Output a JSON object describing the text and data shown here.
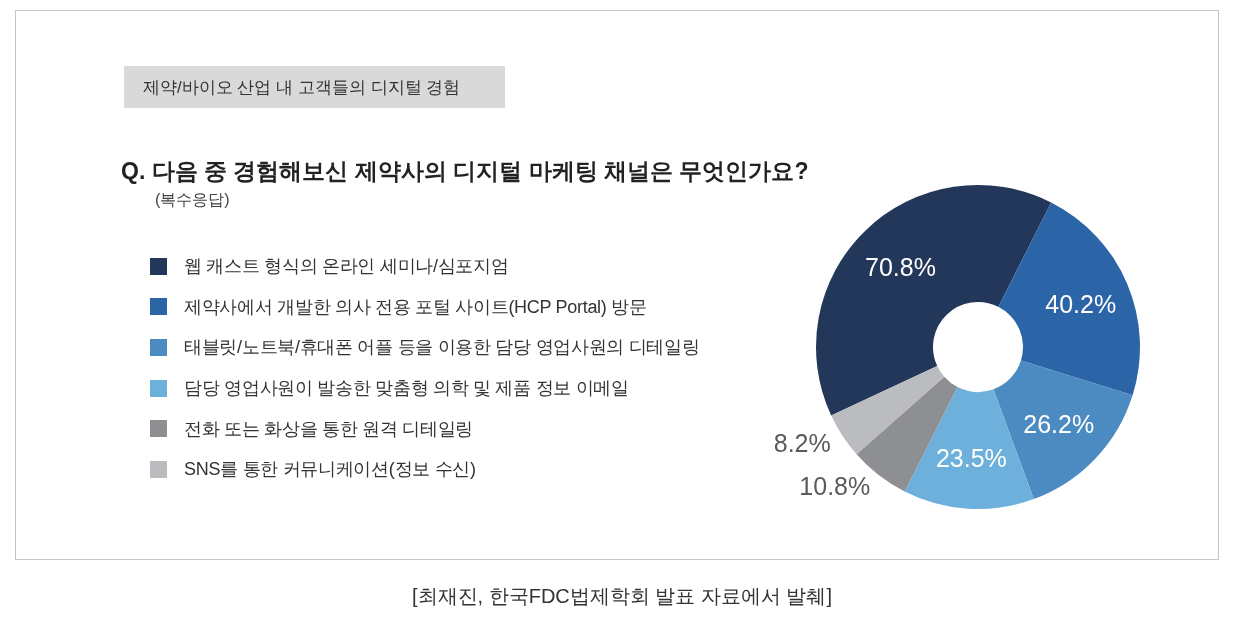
{
  "chart_data": {
    "type": "donut",
    "title": "Q. 다음 중 경험해보신 제약사의 디지털 마케팅 채널은 무엇인가요?",
    "subtitle": "(복수응답)",
    "annotations": [
      "제약/바이오 산업 내 고객들의 디지털 경험",
      "[최재진, 한국FDC법제학회 발표 자료에서 발췌]"
    ],
    "categories": [
      "웹 캐스트 형식의 온라인 세미나/심포지엄",
      "제약사에서 개발한 의사 전용 포털 사이트(HCP Portal) 방문",
      "태블릿/노트북/휴대폰 어플 등을 이용한 담당 영업사원의 디테일링",
      "담당 영업사원이 발송한 맞춤형 의학 및 제품 정보 이메일",
      "전화 또는 화상을 통한 원격 디테일링",
      "SNS를 통한 커뮤니케이션(정보 수신)"
    ],
    "values": [
      70.8,
      40.2,
      26.2,
      23.5,
      10.8,
      8.2
    ],
    "colors": [
      "#23375a",
      "#2c64a8",
      "#4b8bc2",
      "#6eb0dc",
      "#8e8f93",
      "#bbbcc0"
    ],
    "value_labels": [
      "70.8%",
      "40.2%",
      "26.2%",
      "23.5%",
      "10.8%",
      "8.2%"
    ],
    "legend": "left"
  }
}
